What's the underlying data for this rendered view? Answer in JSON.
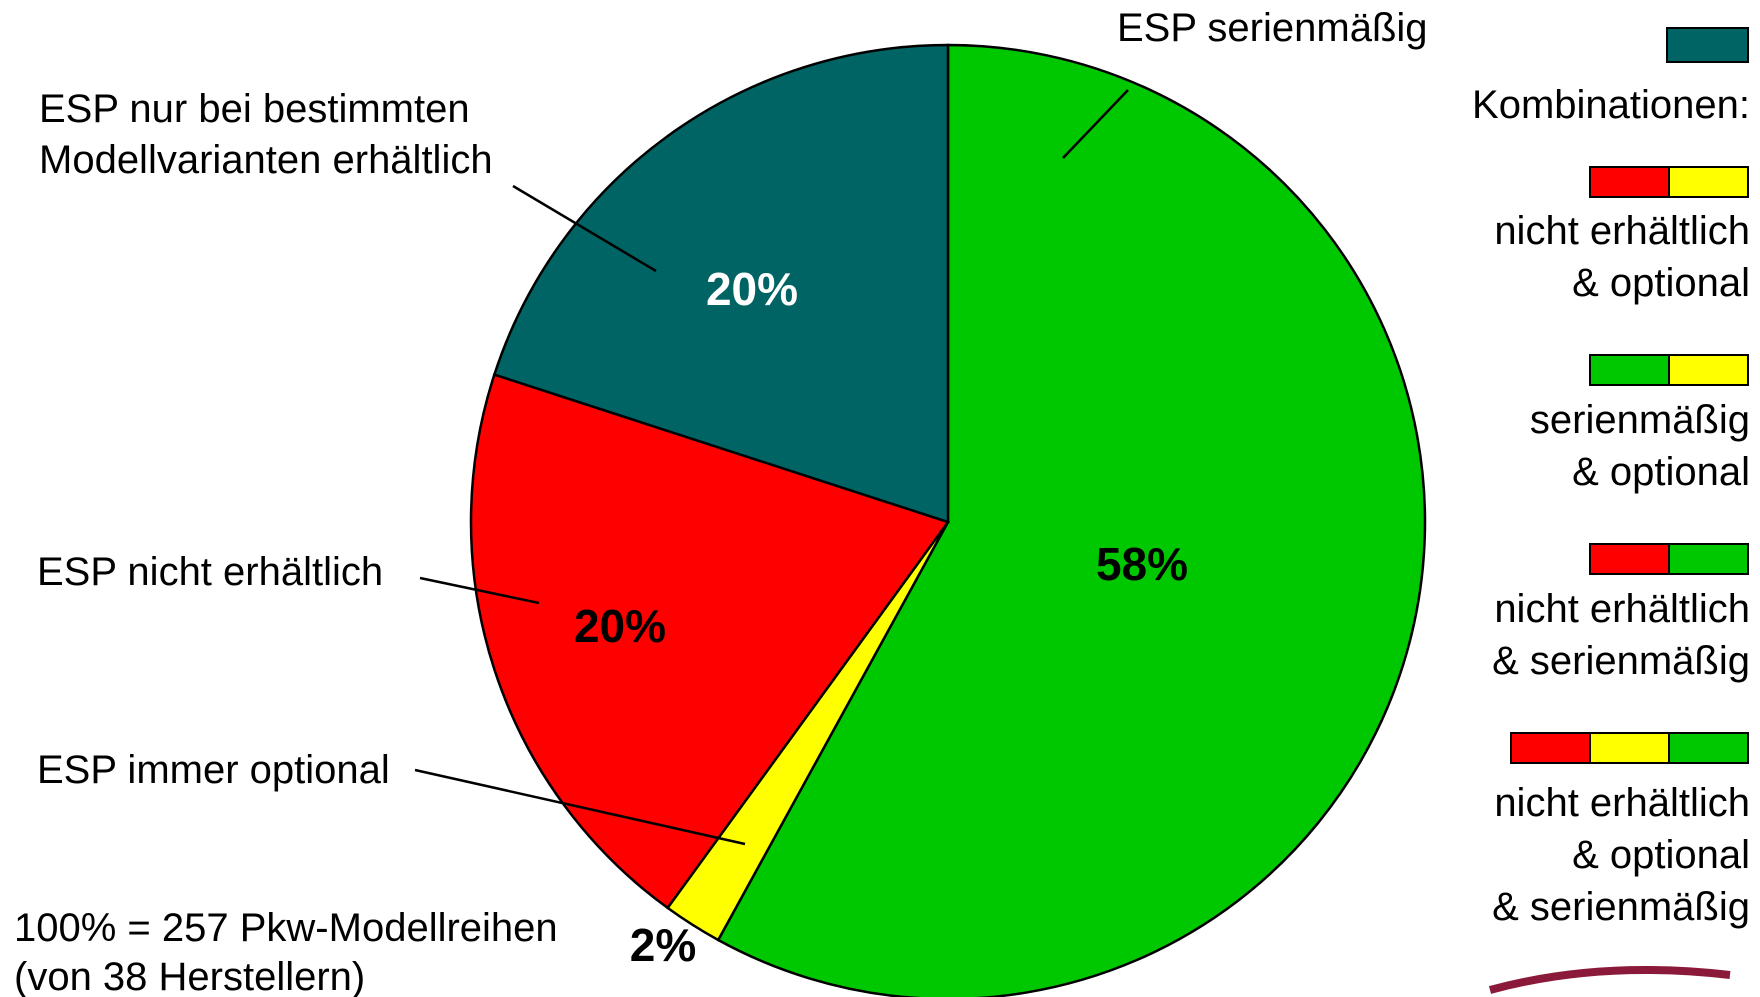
{
  "chart_data": {
    "type": "pie",
    "categories": [
      "ESP serienmäßig",
      "ESP immer optional",
      "ESP nicht erhältlich",
      "ESP nur bei bestimmten Modellvarianten erhältlich"
    ],
    "values": [
      58,
      2,
      20,
      20
    ],
    "value_labels": [
      "58%",
      "2%",
      "20%",
      "20%"
    ],
    "colors": [
      "#00c800",
      "#ffff00",
      "#ff0000",
      "#006464"
    ],
    "legend_title": "Kombinationen:",
    "legend": [
      {
        "colors": [
          "#ff0000",
          "#ffff00"
        ],
        "lines": [
          "nicht erhältlich",
          "& optional"
        ]
      },
      {
        "colors": [
          "#00c800",
          "#ffff00"
        ],
        "lines": [
          "serienmäßig",
          "& optional"
        ]
      },
      {
        "colors": [
          "#ff0000",
          "#00c800"
        ],
        "lines": [
          "nicht erhältlich",
          "& serienmäßig"
        ]
      },
      {
        "colors": [
          "#ff0000",
          "#ffff00",
          "#00c800"
        ],
        "lines": [
          "nicht erhältlich",
          "& optional",
          "& serienmäßig"
        ]
      }
    ],
    "note": [
      "100% = 257 Pkw-Modellreihen",
      "(von 38 Herstellern)"
    ]
  }
}
